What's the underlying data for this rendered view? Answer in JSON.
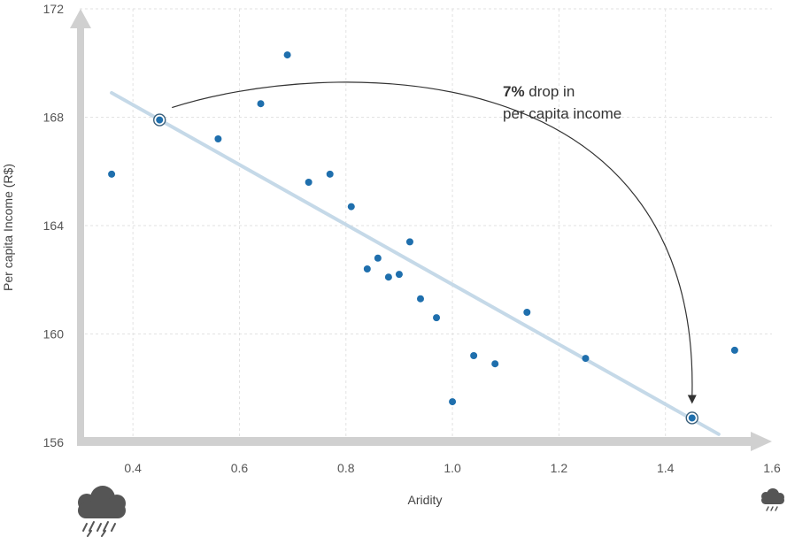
{
  "chart_data": {
    "type": "scatter",
    "title": "",
    "xlabel": "Aridity",
    "ylabel": "Per capita Income (R$)",
    "xlim": [
      0.3,
      1.6
    ],
    "ylim": [
      156,
      172
    ],
    "x_ticks": [
      0.4,
      0.6,
      0.8,
      1.0,
      1.2,
      1.4,
      1.6
    ],
    "x_tick_labels": [
      "0.4",
      "0.6",
      "0.8",
      "1.0",
      "1.2",
      "1.4",
      "1.6"
    ],
    "y_ticks": [
      156,
      160,
      164,
      168,
      172
    ],
    "y_tick_labels": [
      "156",
      "160",
      "164",
      "168",
      "172"
    ],
    "grid": true,
    "points": [
      {
        "x": 0.36,
        "y": 165.9
      },
      {
        "x": 0.56,
        "y": 167.2
      },
      {
        "x": 0.64,
        "y": 168.5
      },
      {
        "x": 0.69,
        "y": 170.3
      },
      {
        "x": 0.73,
        "y": 165.6
      },
      {
        "x": 0.77,
        "y": 165.9
      },
      {
        "x": 0.81,
        "y": 164.7
      },
      {
        "x": 0.84,
        "y": 162.4
      },
      {
        "x": 0.86,
        "y": 162.8
      },
      {
        "x": 0.88,
        "y": 162.1
      },
      {
        "x": 0.9,
        "y": 162.2
      },
      {
        "x": 0.92,
        "y": 163.4
      },
      {
        "x": 0.94,
        "y": 161.3
      },
      {
        "x": 0.97,
        "y": 160.6
      },
      {
        "x": 1.0,
        "y": 157.5
      },
      {
        "x": 1.04,
        "y": 159.2
      },
      {
        "x": 1.08,
        "y": 158.9
      },
      {
        "x": 1.14,
        "y": 160.8
      },
      {
        "x": 1.25,
        "y": 159.1
      },
      {
        "x": 1.53,
        "y": 159.4
      }
    ],
    "highlighted_points": [
      {
        "x": 0.45,
        "y": 167.9
      },
      {
        "x": 1.45,
        "y": 156.9
      }
    ],
    "trend_line": {
      "x1": 0.36,
      "y1": 168.9,
      "x2": 1.5,
      "y2": 156.3
    },
    "annotation": {
      "bold": "7%",
      "line1_rest": " drop in",
      "line2": "per capita income"
    },
    "colors": {
      "point": "#1f6fad",
      "trend": "#c5d9e8",
      "axis_arrow": "#d0d0d0",
      "grid": "#e2e2e2",
      "cloud": "#555555"
    }
  },
  "icons": {
    "left": "rain-cloud-icon",
    "right": "light-rain-cloud-icon"
  }
}
